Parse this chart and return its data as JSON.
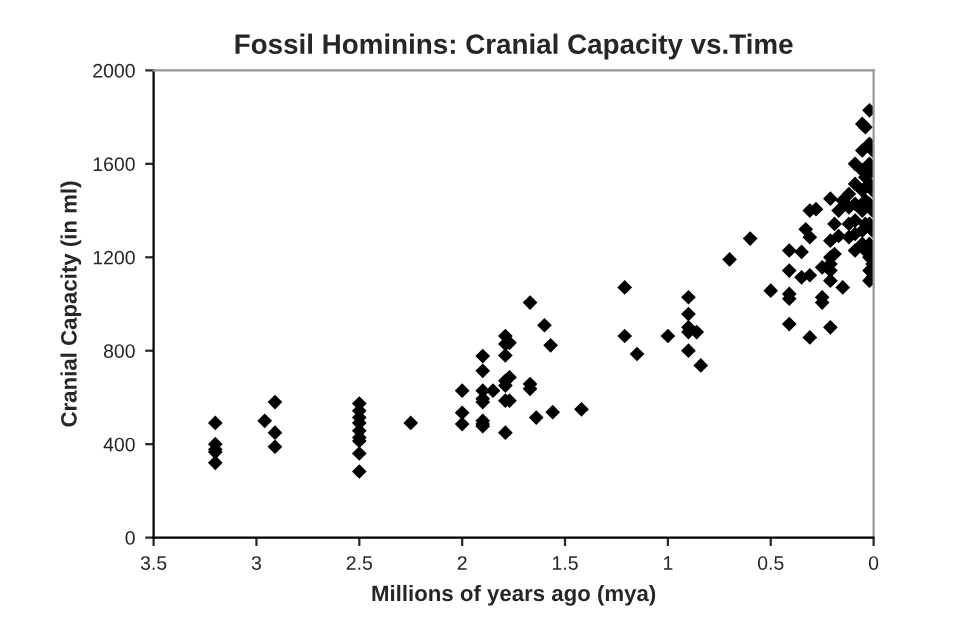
{
  "chart_data": {
    "type": "scatter",
    "title": "Fossil Hominins: Cranial Capacity vs.Time",
    "xlabel": "Millions of years ago (mya)",
    "ylabel": "Cranial Capacity (in ml)",
    "series": [
      {
        "color": "#000000",
        "x": [
          3.2,
          3.2,
          3.2,
          3.2,
          3.2,
          2.96,
          2.91,
          2.91,
          2.91,
          2.5,
          2.5,
          2.5,
          2.5,
          2.5,
          2.5,
          2.5,
          2.5,
          2.5,
          2.25,
          2.0,
          2.0,
          2.0,
          1.9,
          1.9,
          1.9,
          1.9,
          1.9,
          1.9,
          1.9,
          1.9,
          1.85,
          1.79,
          1.79,
          1.79,
          1.79,
          1.79,
          1.79,
          1.79,
          1.77,
          1.77,
          1.77,
          1.67,
          1.67,
          1.67,
          1.64,
          1.6,
          1.57,
          1.56,
          1.42,
          1.21,
          1.21,
          1.15,
          1.0,
          0.9,
          0.9,
          0.9,
          0.9,
          0.9,
          0.86,
          0.84,
          0.7,
          0.6,
          0.5,
          0.41,
          0.41,
          0.41,
          0.41,
          0.41,
          0.35,
          0.35,
          0.33,
          0.31,
          0.31,
          0.31,
          0.31,
          0.28,
          0.25,
          0.25,
          0.25,
          0.21,
          0.21,
          0.21,
          0.21,
          0.21,
          0.21,
          0.21,
          0.19,
          0.19,
          0.17,
          0.17,
          0.15,
          0.15,
          0.12,
          0.12,
          0.12,
          0.12,
          0.09,
          0.09,
          0.09,
          0.09,
          0.09,
          0.09,
          0.055,
          0.055,
          0.055,
          0.055,
          0.055,
          0.055,
          0.055,
          0.04,
          0.04,
          0.04,
          0.04,
          0.04,
          0.02,
          0.02,
          0.02,
          0.02,
          0.02,
          0.02,
          0.02,
          0.02,
          0.02,
          0.02,
          0.005,
          0.005,
          0.005,
          0.005,
          0.005,
          0.005,
          0.005,
          0.005
        ],
        "values": [
          491,
          400,
          377,
          366,
          320,
          500,
          580,
          449,
          389,
          574,
          543,
          514,
          491,
          457,
          429,
          414,
          360,
          283,
          491,
          629,
          534,
          486,
          777,
          714,
          629,
          594,
          580,
          500,
          486,
          477,
          629,
          863,
          829,
          780,
          671,
          651,
          586,
          449,
          834,
          686,
          586,
          1006,
          657,
          637,
          514,
          909,
          823,
          537,
          549,
          1071,
          863,
          786,
          863,
          1029,
          957,
          900,
          880,
          800,
          880,
          737,
          1191,
          1280,
          1057,
          1229,
          1143,
          1043,
          1023,
          914,
          1223,
          1114,
          1320,
          1400,
          1286,
          1123,
          857,
          1406,
          1157,
          1029,
          1006,
          1451,
          1271,
          1200,
          1171,
          1143,
          1100,
          900,
          1343,
          1214,
          1400,
          1291,
          1443,
          1071,
          1471,
          1414,
          1343,
          1286,
          1600,
          1514,
          1429,
          1357,
          1300,
          1229,
          1771,
          1657,
          1571,
          1486,
          1400,
          1314,
          1257,
          1757,
          1543,
          1443,
          1343,
          1229,
          1829,
          1686,
          1600,
          1514,
          1429,
          1343,
          1257,
          1200,
          1143,
          1100,
          1657,
          1571,
          1486,
          1400,
          1314,
          1229,
          1171,
          1114
        ]
      }
    ],
    "xlim": [
      3.5,
      0
    ],
    "xticks": [
      3.5,
      3,
      2.5,
      2,
      1.5,
      1,
      0.5,
      0
    ],
    "ylim": [
      0,
      2000
    ],
    "yticks": [
      0,
      400,
      800,
      1200,
      1600,
      2000
    ],
    "marker": "diamond",
    "grid": false,
    "legend": false
  }
}
